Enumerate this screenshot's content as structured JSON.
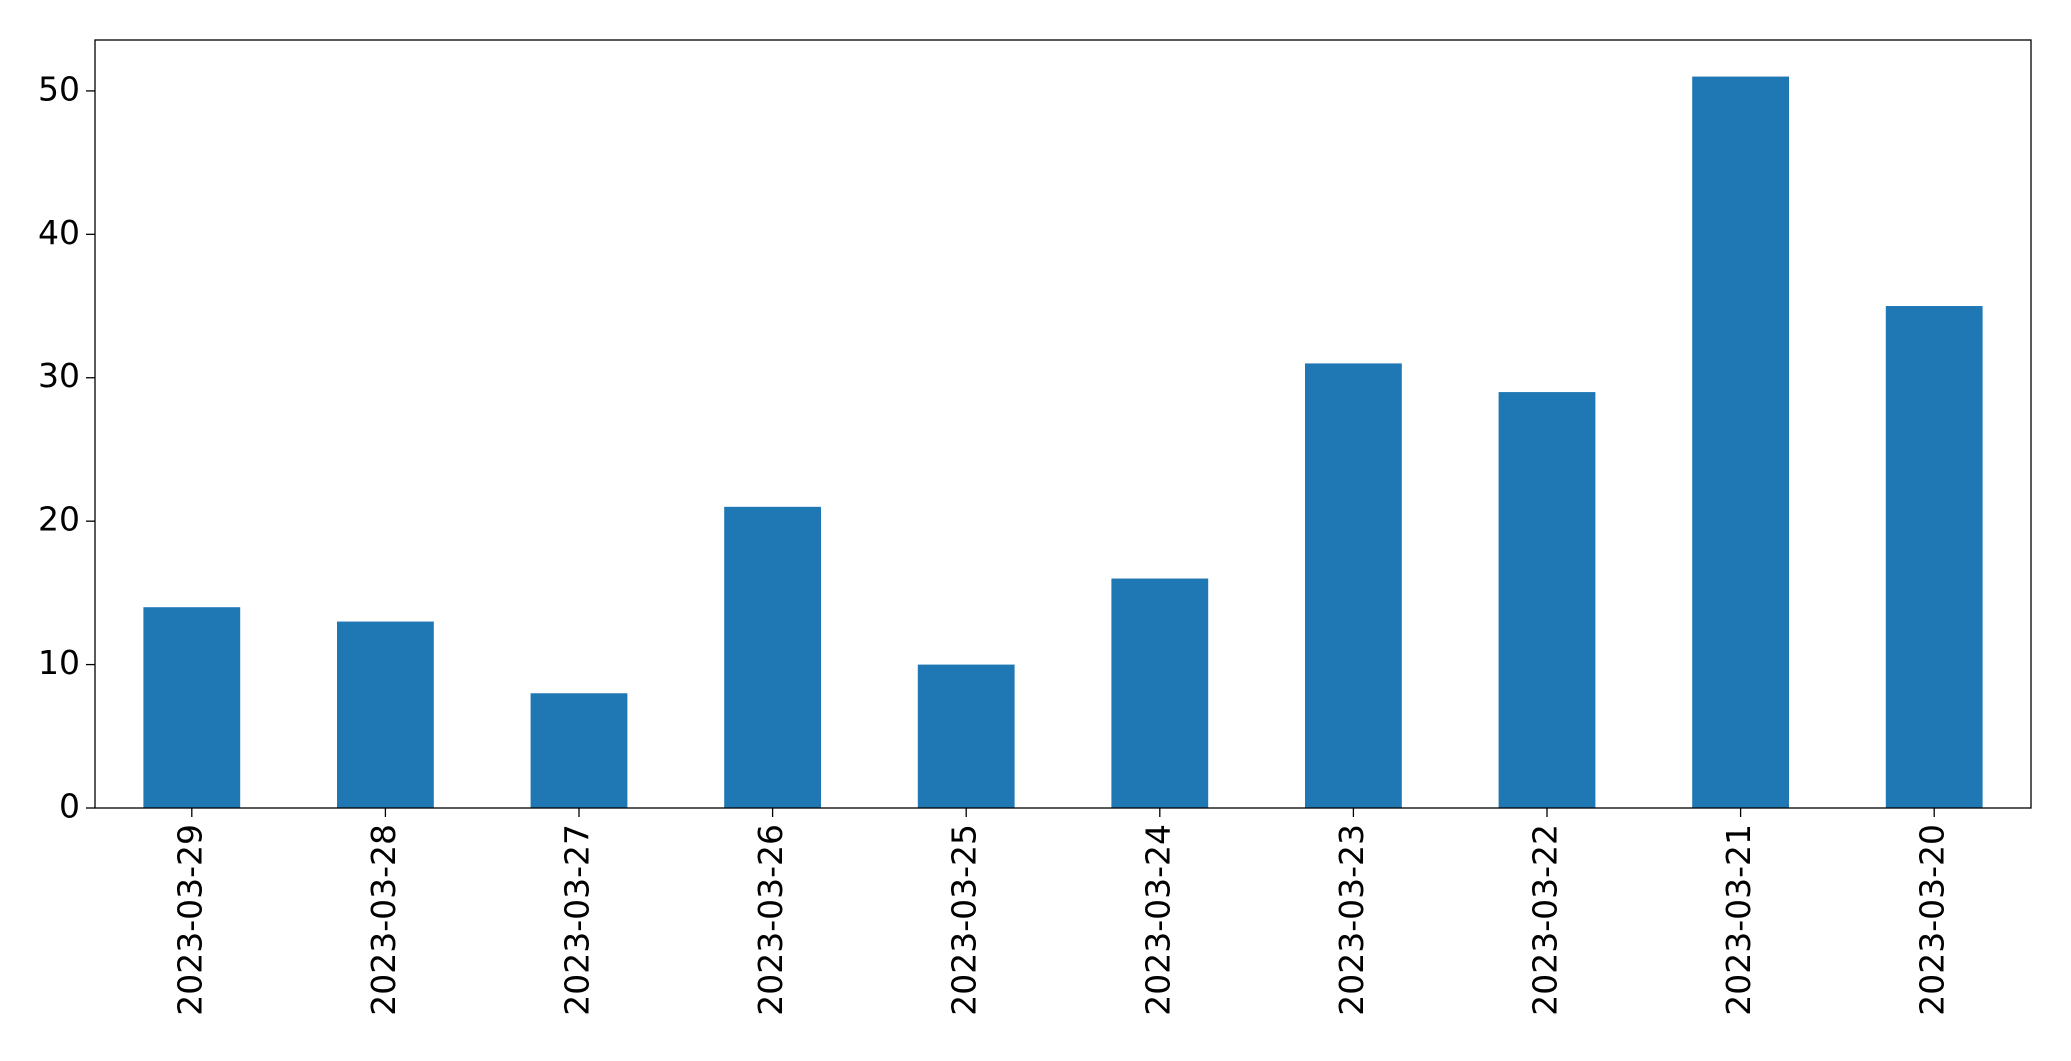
{
  "chart_data": {
    "type": "bar",
    "categories": [
      "2023-03-29",
      "2023-03-28",
      "2023-03-27",
      "2023-03-26",
      "2023-03-25",
      "2023-03-24",
      "2023-03-23",
      "2023-03-22",
      "2023-03-21",
      "2023-03-20"
    ],
    "values": [
      14,
      13,
      8,
      21,
      10,
      16,
      31,
      29,
      51,
      35
    ],
    "color": "#1f77b4",
    "ylim": [
      0,
      53.55
    ],
    "yticks": [
      0,
      10,
      20,
      30,
      40,
      50
    ],
    "grid": false
  }
}
